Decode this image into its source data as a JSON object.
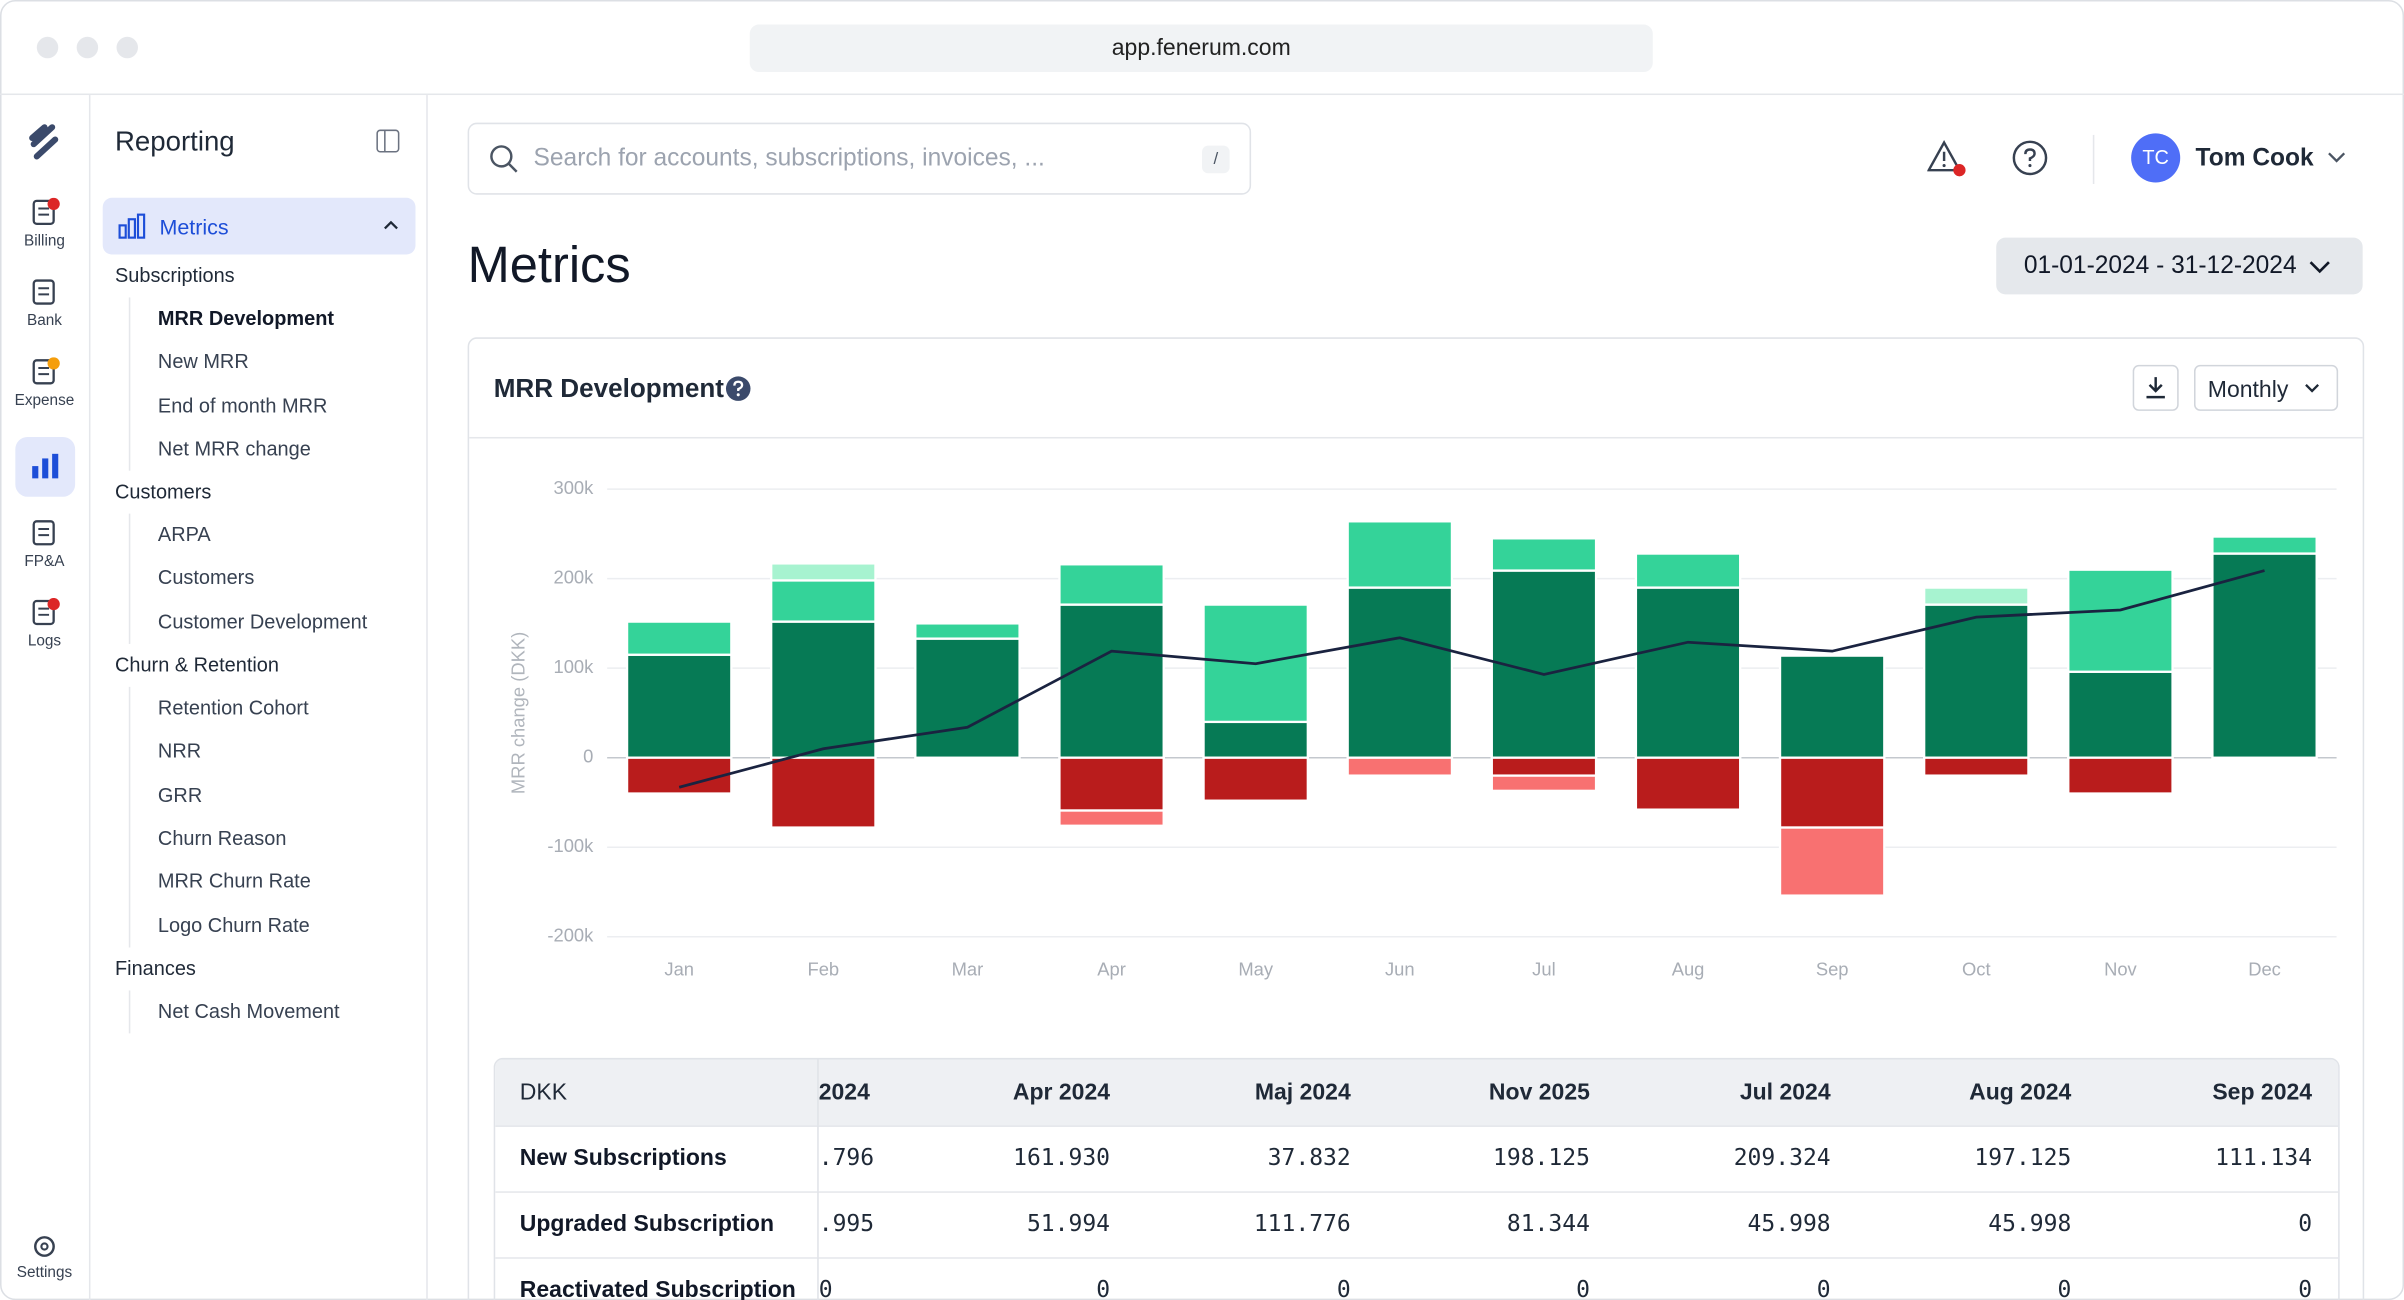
{
  "browser": {
    "url": "app.fenerum.com"
  },
  "nav": [
    {
      "label": "Billing"
    },
    {
      "label": "Bank"
    },
    {
      "label": "Expense"
    },
    {
      "label": "FP&A"
    },
    {
      "label": "Logs"
    }
  ],
  "settings": "Settings",
  "sidebar": {
    "title": "Reporting",
    "active_section": "Metrics",
    "groups": [
      {
        "title": "Subscriptions",
        "items": [
          "MRR Development",
          "New MRR",
          "End of month MRR",
          "Net MRR change"
        ]
      },
      {
        "title": "Customers",
        "items": [
          "ARPA",
          "Customers",
          "Customer Development"
        ]
      },
      {
        "title": "Churn & Retention",
        "items": [
          "Retention Cohort",
          "NRR",
          "GRR",
          "Churn Reason",
          "MRR Churn Rate",
          "Logo Churn Rate"
        ]
      },
      {
        "title": "Finances",
        "items": [
          "Net Cash Movement"
        ]
      }
    ]
  },
  "search": {
    "placeholder": "Search for accounts, subscriptions, invoices, ...",
    "shortcut": "/"
  },
  "user": {
    "initials": "TC",
    "name": "Tom Cook"
  },
  "page_title": "Metrics",
  "date_range": "01-01-2024 - 31-12-2024",
  "chart_data": {
    "type": "bar",
    "title": "MRR Development",
    "period": "Monthly",
    "y_label": "MRR change (DKK)",
    "categories": [
      "Jan",
      "Feb",
      "Mar",
      "Apr",
      "May",
      "Jun",
      "Jul",
      "Aug",
      "Sep",
      "Oct",
      "Nov",
      "Dec"
    ],
    "series": [
      {
        "color": "#067a55",
        "values": [
          115000,
          152000,
          133000,
          171000,
          40000,
          190000,
          209000,
          190000,
          114000,
          171000,
          96000,
          228000
        ]
      },
      {
        "color": "#34d399",
        "values": [
          37000,
          46000,
          17000,
          45000,
          131000,
          74000,
          36000,
          38000,
          0,
          0,
          114000,
          19000
        ]
      },
      {
        "color": "#a7f3d0",
        "values": [
          0,
          19000,
          0,
          0,
          0,
          0,
          0,
          0,
          0,
          19000,
          0,
          0
        ]
      },
      {
        "color": "#b91c1c",
        "values": [
          -40000,
          -78000,
          0,
          -59000,
          -48000,
          0,
          -20000,
          -58000,
          -78000,
          -20000,
          -40000,
          0
        ]
      },
      {
        "color": "#f87171",
        "values": [
          0,
          0,
          0,
          -17000,
          0,
          -20000,
          -17000,
          0,
          -76000,
          0,
          0,
          0
        ]
      }
    ],
    "line": {
      "color": "#1a2340",
      "values": [
        -33000,
        10000,
        34000,
        119000,
        105000,
        134000,
        93000,
        129000,
        119000,
        157000,
        165000,
        209000
      ]
    },
    "ylim": [
      -200000,
      300000
    ],
    "yticks": [
      {
        "value": -200000,
        "label": "-200k"
      },
      {
        "value": -100000,
        "label": "-100k"
      },
      0,
      {
        "value": 100000,
        "label": "100k"
      },
      {
        "value": 200000,
        "label": "200k"
      },
      {
        "value": 300000,
        "label": "300k"
      }
    ],
    "grid": true
  },
  "table": {
    "header": [
      "DKK",
      "2024",
      "Apr 2024",
      "Maj 2024",
      "Nov 2025",
      "Jul 2024",
      "Aug 2024",
      "Sep 2024"
    ],
    "rows": [
      [
        "New Subscriptions",
        ".796",
        "161.930",
        "37.832",
        "198.125",
        "209.324",
        "197.125",
        "111.134"
      ],
      [
        "Upgraded Subscription",
        ".995",
        "51.994",
        "111.776",
        "81.344",
        "45.998",
        "45.998",
        "0"
      ],
      [
        "Reactivated Subscription",
        "0",
        "0",
        "0",
        "0",
        "0",
        "0",
        "0"
      ]
    ]
  }
}
